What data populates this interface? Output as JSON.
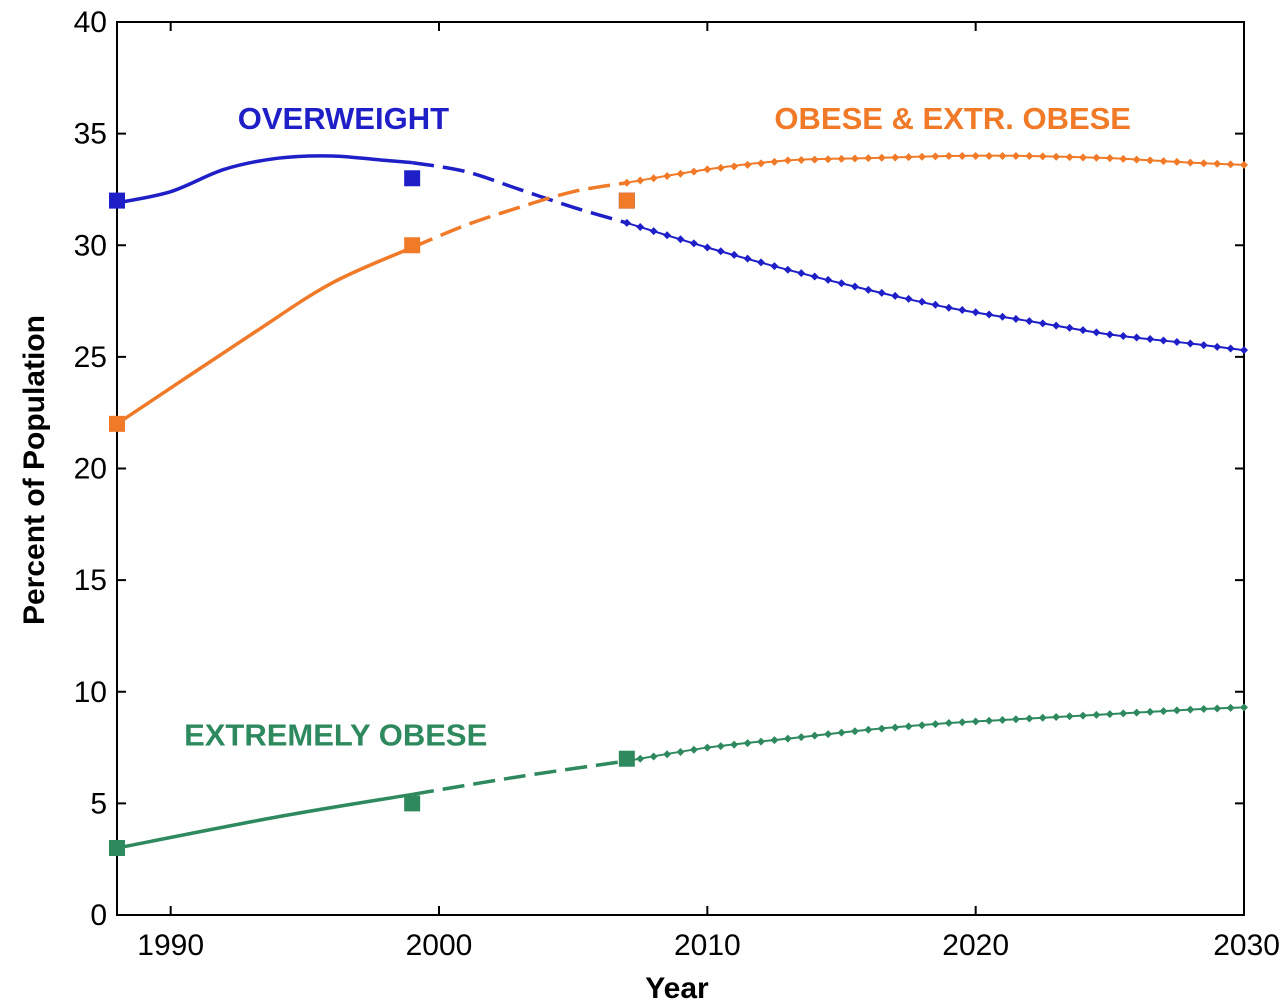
{
  "chart_data": {
    "type": "line",
    "xlabel": "Year",
    "ylabel": "Percent of Population",
    "xlim": [
      1988,
      2030
    ],
    "ylim": [
      0,
      40
    ],
    "x_ticks": [
      1990,
      2000,
      2010,
      2020,
      2030
    ],
    "y_ticks": [
      0,
      5,
      10,
      15,
      20,
      25,
      30,
      35,
      40
    ],
    "grid": false,
    "series": [
      {
        "name": "OVERWEIGHT",
        "color": "#1f1fc8",
        "observed": [
          [
            1988,
            32
          ],
          [
            1999,
            33
          ],
          [
            2007,
            32
          ]
        ],
        "fit": [
          [
            1988,
            31.9
          ],
          [
            1990,
            32.4
          ],
          [
            1992,
            33.4
          ],
          [
            1994,
            33.9
          ],
          [
            1996,
            34.0
          ],
          [
            1998,
            33.8
          ],
          [
            1999,
            33.7
          ]
        ],
        "dashed": [
          [
            1999,
            33.7
          ],
          [
            2001,
            33.3
          ],
          [
            2003,
            32.5
          ],
          [
            2005,
            31.7
          ],
          [
            2007,
            31.0
          ]
        ],
        "projection": [
          [
            2007,
            31.0
          ],
          [
            2010,
            29.9
          ],
          [
            2013,
            28.9
          ],
          [
            2016,
            28.0
          ],
          [
            2019,
            27.2
          ],
          [
            2022,
            26.6
          ],
          [
            2025,
            26.0
          ],
          [
            2028,
            25.6
          ],
          [
            2030,
            25.3
          ]
        ]
      },
      {
        "name": "OBESE & EXTR. OBESE",
        "color": "#f07a28",
        "observed": [
          [
            1988,
            22
          ],
          [
            1999,
            30
          ],
          [
            2007,
            32
          ]
        ],
        "fit": [
          [
            1988,
            22.0
          ],
          [
            1993,
            26.0
          ],
          [
            1996,
            28.3
          ],
          [
            1999,
            29.9
          ]
        ],
        "dashed": [
          [
            1999,
            29.9
          ],
          [
            2001,
            30.9
          ],
          [
            2003,
            31.7
          ],
          [
            2005,
            32.4
          ],
          [
            2007,
            32.8
          ]
        ],
        "projection": [
          [
            2007,
            32.8
          ],
          [
            2010,
            33.4
          ],
          [
            2013,
            33.8
          ],
          [
            2016,
            33.9
          ],
          [
            2019,
            34.0
          ],
          [
            2022,
            34.0
          ],
          [
            2025,
            33.9
          ],
          [
            2028,
            33.7
          ],
          [
            2030,
            33.6
          ]
        ]
      },
      {
        "name": "EXTREMELY OBESE",
        "color": "#2e8a5e",
        "observed": [
          [
            1988,
            3
          ],
          [
            1999,
            5
          ],
          [
            2007,
            7
          ]
        ],
        "fit": [
          [
            1988,
            3.0
          ],
          [
            1994,
            4.4
          ],
          [
            1999,
            5.4
          ]
        ],
        "dashed": [
          [
            1999,
            5.4
          ],
          [
            2003,
            6.2
          ],
          [
            2007,
            6.9
          ]
        ],
        "projection": [
          [
            2007,
            6.9
          ],
          [
            2010,
            7.5
          ],
          [
            2013,
            7.9
          ],
          [
            2016,
            8.3
          ],
          [
            2019,
            8.6
          ],
          [
            2022,
            8.8
          ],
          [
            2025,
            9.0
          ],
          [
            2028,
            9.2
          ],
          [
            2030,
            9.3
          ]
        ]
      }
    ]
  }
}
